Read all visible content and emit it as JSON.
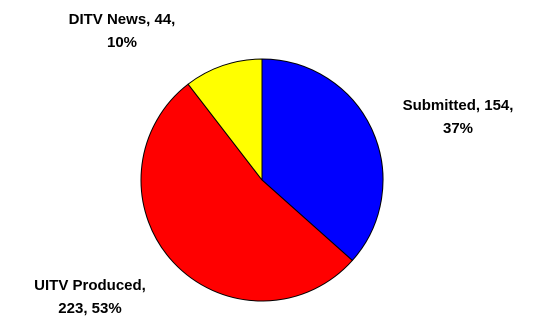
{
  "chart_data": {
    "type": "pie",
    "title": "",
    "slices": [
      {
        "label": "Submitted",
        "value": 154,
        "percent": "37%",
        "color": "#0000FF",
        "line1": "Submitted, 154,",
        "line2": "37%"
      },
      {
        "label": "UITV Produced",
        "value": 223,
        "percent": "53%",
        "color": "#FF0000",
        "line1": "UITV Produced,",
        "line2": "223, 53%"
      },
      {
        "label": "DITV News",
        "value": 44,
        "percent": "10%",
        "color": "#FFFF00",
        "line1": "DITV News, 44,",
        "line2": "10%"
      }
    ],
    "start_angle": "12 o'clock",
    "direction": "clockwise",
    "slice_outline_color": "#000000",
    "legend": "none"
  }
}
